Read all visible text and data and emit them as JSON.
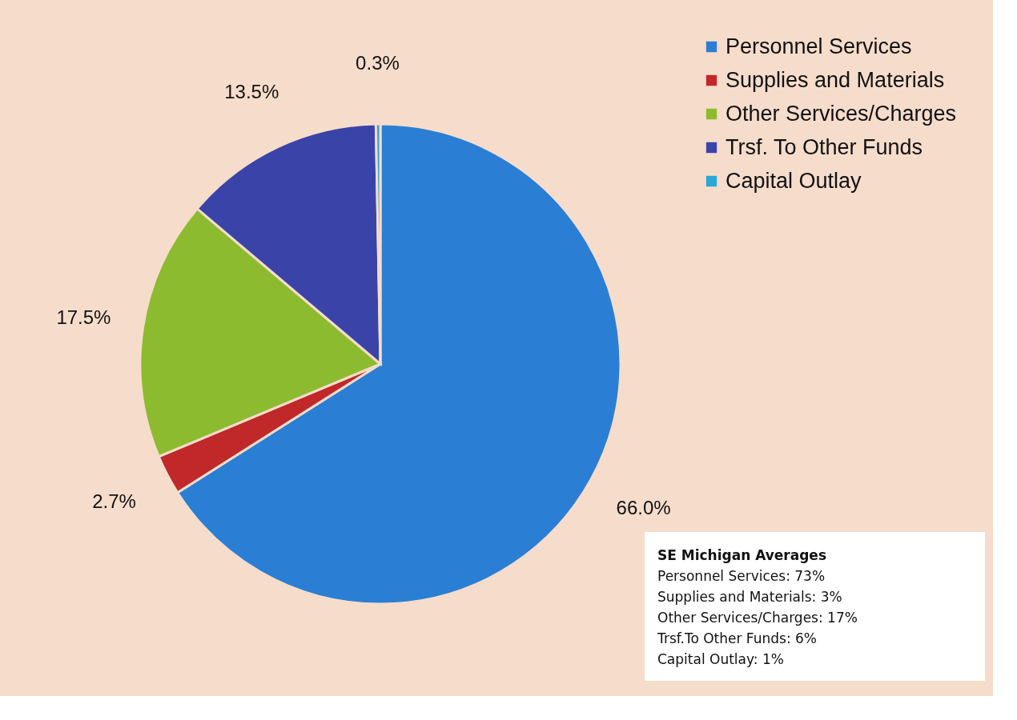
{
  "chart_data": {
    "type": "pie",
    "categories": [
      "Personnel Services",
      "Supplies and Materials",
      "Other Services/Charges",
      "Trsf. To Other Funds",
      "Capital Outlay"
    ],
    "values": [
      66.0,
      2.7,
      17.5,
      13.5,
      0.3
    ],
    "colors": [
      "#2a7fd4",
      "#c0282a",
      "#8dbb2f",
      "#3a44a8",
      "#28a8d8"
    ],
    "value_labels": [
      "66.0%",
      "2.7%",
      "17.5%",
      "13.5%",
      "0.3%"
    ],
    "legend": "top right",
    "annotations": [
      "SE Michigan Averages",
      "Personnel Services:    73%",
      "Supplies and Materials: 3%",
      "Other Services/Charges: 17%",
      "Trsf.To Other Funds: 6%",
      "Capital Outlay: 1%"
    ]
  }
}
